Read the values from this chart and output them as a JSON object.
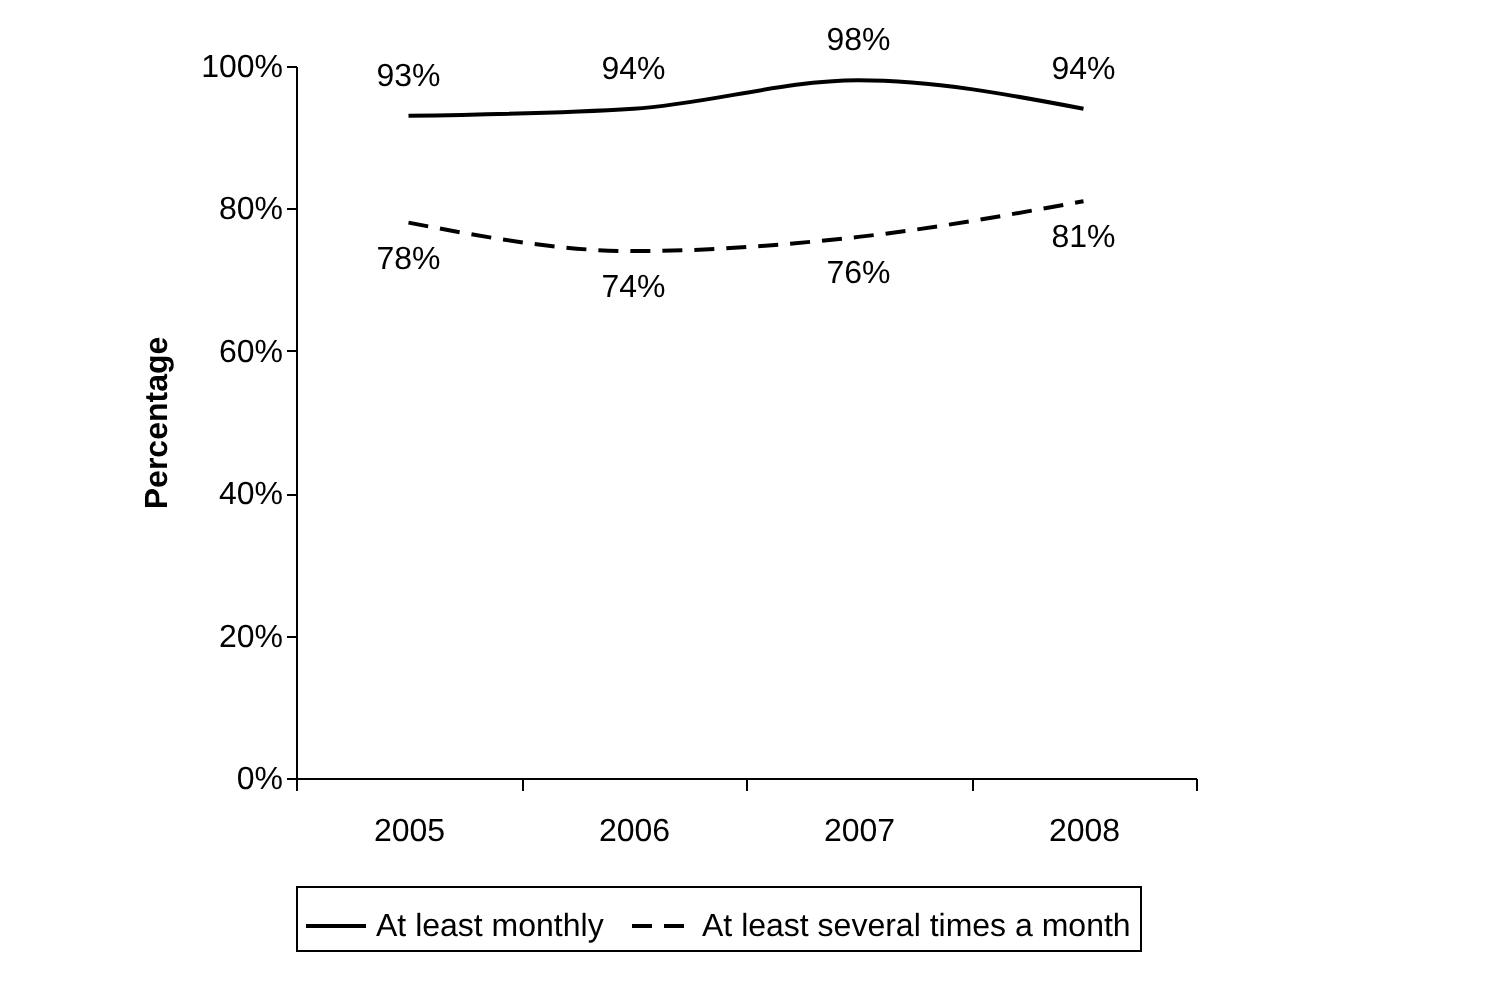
{
  "chart_data": {
    "type": "line",
    "ylabel": "Percentage",
    "categories": [
      "2005",
      "2006",
      "2007",
      "2008"
    ],
    "series": [
      {
        "name": "At least monthly",
        "color": "#000000",
        "line_style": "solid",
        "values": [
          93,
          94,
          98,
          94
        ],
        "value_labels": [
          "93%",
          "94%",
          "98%",
          "94%"
        ]
      },
      {
        "name": "At least several times a month",
        "color": "#000000",
        "line_style": "dashed",
        "values": [
          78,
          74,
          76,
          81
        ],
        "value_labels": [
          "78%",
          "74%",
          "76%",
          "81%"
        ]
      }
    ],
    "ylim": [
      0,
      100
    ],
    "yticks": [
      {
        "value": 0,
        "label": "0%"
      },
      {
        "value": 20,
        "label": "20%"
      },
      {
        "value": 40,
        "label": "40%"
      },
      {
        "value": 60,
        "label": "60%"
      },
      {
        "value": 80,
        "label": "80%"
      },
      {
        "value": 100,
        "label": "100%"
      }
    ],
    "grid": false,
    "legend": "bottom",
    "marker": "none"
  }
}
